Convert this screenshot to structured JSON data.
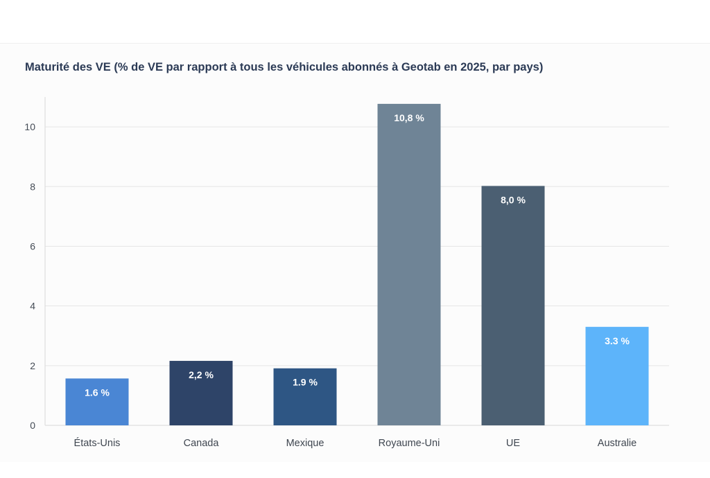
{
  "chart_data": {
    "type": "bar",
    "title": "Maturité des VE (% de VE par rapport à tous les véhicules abonnés à Geotab en 2025, par pays)",
    "xlabel": "",
    "ylabel": "",
    "ylim": [
      0,
      11
    ],
    "yticks": [
      0,
      2,
      4,
      6,
      8,
      10
    ],
    "grid": true,
    "categories": [
      "États-Unis",
      "Canada",
      "Mexique",
      "Royaume-Uni",
      "UE",
      "Australie"
    ],
    "values": [
      1.57,
      2.16,
      1.91,
      10.77,
      8.02,
      3.3
    ],
    "data_labels": [
      "1.6 %",
      "2,2 %",
      "1.9 %",
      "10,8 %",
      "8,0 %",
      "3.3 %"
    ],
    "colors": [
      "#4a86d4",
      "#2e4468",
      "#2e5684",
      "#6f8496",
      "#4b5f72",
      "#5db4fa"
    ]
  }
}
